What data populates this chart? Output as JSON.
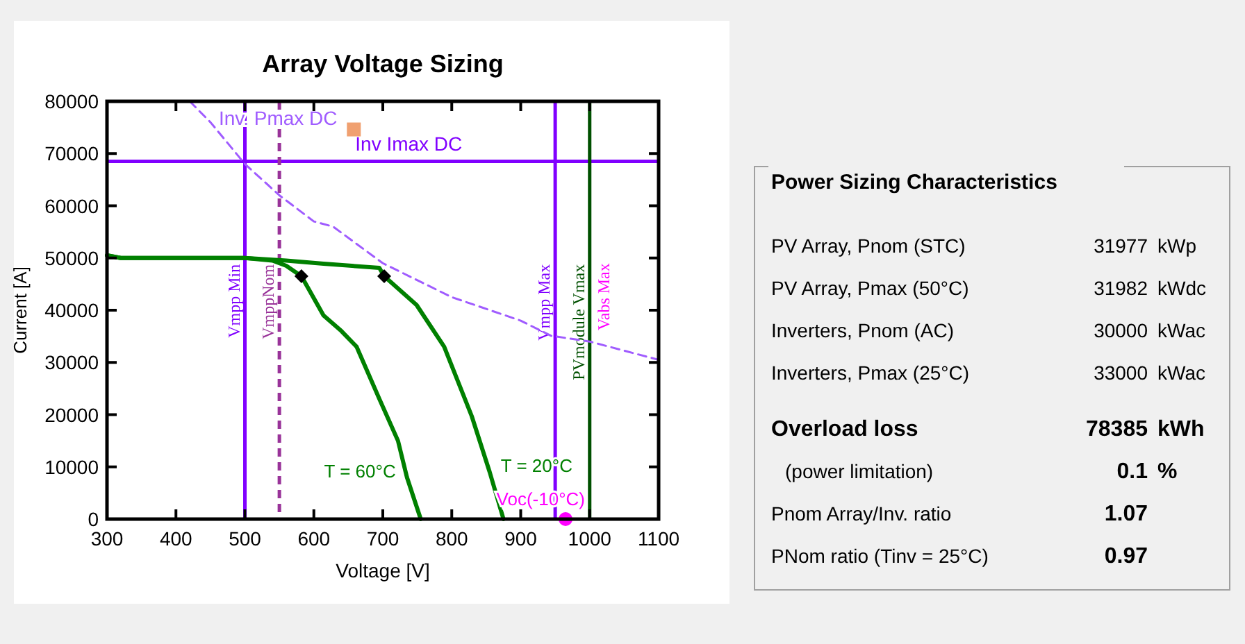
{
  "chart_data": [
    {
      "type": "line",
      "title": "Array Voltage Sizing",
      "xlabel": "Voltage [V]",
      "ylabel": "Current [A]",
      "xlim": [
        300,
        1100
      ],
      "xticks": [
        300,
        400,
        500,
        600,
        700,
        800,
        900,
        1000,
        1100
      ],
      "ylim": [
        0,
        80000
      ],
      "yticks": [
        0,
        10000,
        20000,
        30000,
        40000,
        50000,
        60000,
        70000,
        80000
      ],
      "grid": false,
      "series": [
        {
          "name": "T = 60°C",
          "type": "line",
          "color": "#008000",
          "line_style": "solid",
          "marker": "none",
          "x": [
            300,
            320,
            500,
            540,
            560,
            582,
            614,
            640,
            662,
            695,
            722,
            735,
            755
          ],
          "values": [
            50500,
            50000,
            50000,
            49500,
            48500,
            46500,
            39000,
            36000,
            33000,
            23000,
            15000,
            8000,
            0
          ]
        },
        {
          "name": "T = 20°C",
          "type": "line",
          "color": "#008000",
          "line_style": "solid",
          "marker": "none",
          "x": [
            300,
            320,
            500,
            560,
            614,
            695,
            702,
            749,
            789,
            829,
            855,
            875
          ],
          "values": [
            50500,
            50000,
            50000,
            49500,
            48900,
            48100,
            46500,
            41000,
            33000,
            19700,
            9000,
            0
          ]
        },
        {
          "name": "Inv. Pmax DC",
          "type": "line",
          "color": "#a05cff",
          "line_style": "dashed",
          "marker": "none",
          "x": [
            420,
            450,
            500,
            550,
            600,
            628,
            700,
            800,
            900,
            944,
            1000,
            1100
          ],
          "values": [
            80000,
            76000,
            68000,
            62000,
            57000,
            56000,
            49000,
            42500,
            38000,
            35100,
            34000,
            30500
          ]
        },
        {
          "type": "scatter",
          "color": "#000000",
          "marker": "diamond",
          "x": [
            582,
            702
          ],
          "values": [
            46500,
            46500
          ]
        },
        {
          "name": "Voc(-10°C)",
          "type": "scatter",
          "color": "#ff00ff",
          "marker": "circle",
          "x": [
            965
          ],
          "values": [
            0
          ]
        }
      ],
      "ref_lines": [
        {
          "axis": "y",
          "value": 68500,
          "label": "Inv Imax DC",
          "color": "#8000ff",
          "line_style": "solid"
        },
        {
          "axis": "x",
          "value": 500,
          "label": "Vmpp Min",
          "color": "#8000ff",
          "line_style": "solid"
        },
        {
          "axis": "x",
          "value": 550,
          "label": "VmppNom",
          "color": "#993399",
          "line_style": "dashed"
        },
        {
          "axis": "x",
          "value": 950,
          "label": "Vmpp Max",
          "color": "#8000ff",
          "line_style": "solid"
        },
        {
          "axis": "x",
          "value": 1000,
          "label": "PVmodule Vmax",
          "color": "#005000",
          "line_style": "solid"
        }
      ],
      "annotations": [
        {
          "text": "Vabs Max",
          "x": 1000,
          "y": 49000
        }
      ]
    },
    {
      "type": "other",
      "title": "Power Sizing Characteristics",
      "annotations": [
        "PV Array, Pnom (STC)",
        "31977 kWp",
        "PV Array, Pmax (50°C)",
        "31982 kWdc",
        "Inverters, Pnom (AC)",
        "30000 kWac",
        "Inverters, Pmax (25°C)",
        "33000 kWac",
        "Overload loss",
        "78385 kWh",
        "(power limitation)",
        "0.1 %",
        "Pnom Array/Inv. ratio",
        "1.07",
        "PNom ratio (Tinv = 25°C)",
        "0.97"
      ]
    }
  ]
}
